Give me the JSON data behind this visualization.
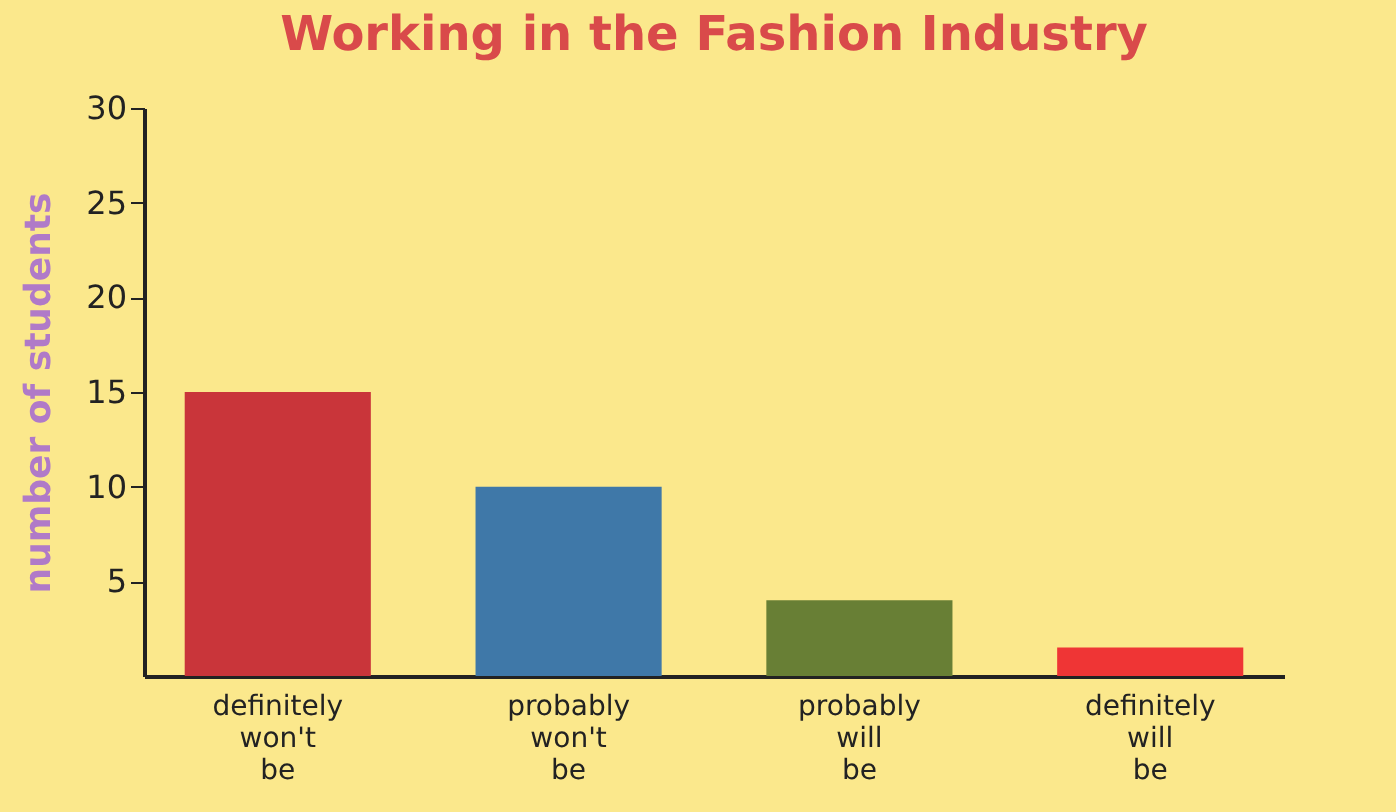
{
  "chart_data": {
    "type": "bar",
    "title": "Working in the Fashion Industry",
    "ylabel": "number of students",
    "categories": [
      "definitely won't be",
      "probably won't be",
      "probably will be",
      "definitely will be"
    ],
    "values": [
      15,
      10,
      4,
      1.5
    ],
    "colors": [
      "#c9353a",
      "#3f78a8",
      "#687f35",
      "#ef3535"
    ],
    "ylim": [
      0,
      30
    ],
    "yticks": [
      5,
      10,
      15,
      20,
      25,
      30
    ],
    "grid": false,
    "legend": false
  }
}
